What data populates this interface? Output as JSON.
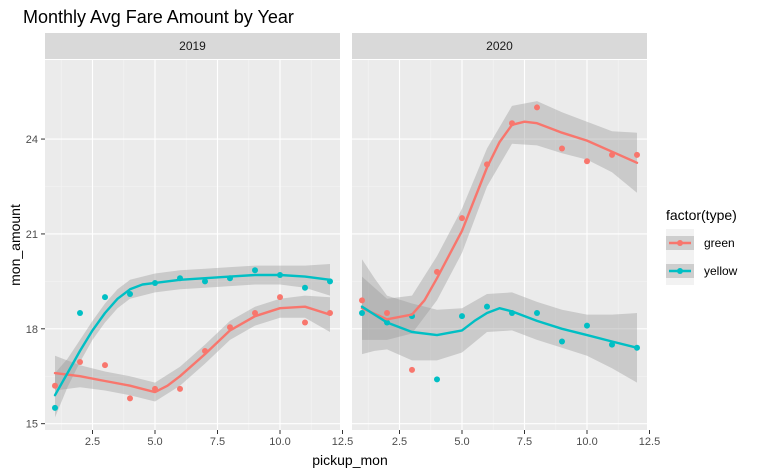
{
  "chart_data": {
    "type": "scatter",
    "title": "Monthly Avg Fare Amount by Year",
    "xlabel": "pickup_mon",
    "ylabel": "mon_amount",
    "xlim": [
      0.6,
      12.4
    ],
    "ylim": [
      14.8,
      26.5
    ],
    "x_ticks": [
      2.5,
      5.0,
      7.5,
      10.0,
      12.5
    ],
    "x_tick_labels": [
      "2.5",
      "5.0",
      "7.5",
      "10.0",
      "12.5"
    ],
    "y_ticks": [
      15,
      18,
      21,
      24
    ],
    "y_tick_labels": [
      "15",
      "18",
      "21",
      "24"
    ],
    "grid": true,
    "legend": {
      "title": "factor(type)",
      "placement": "right"
    },
    "colors": {
      "green": "#F8766D",
      "yellow": "#00BFC4"
    },
    "panels": [
      {
        "label": "2019",
        "series": [
          {
            "name": "green",
            "points": [
              [
                1,
                16.2
              ],
              [
                2,
                16.95
              ],
              [
                3,
                16.85
              ],
              [
                4,
                15.8
              ],
              [
                5,
                16.1
              ],
              [
                6,
                16.1
              ],
              [
                7,
                17.3
              ],
              [
                8,
                18.05
              ],
              [
                9,
                18.5
              ],
              [
                10,
                19.0
              ],
              [
                11,
                18.2
              ],
              [
                12,
                18.5
              ]
            ],
            "smooth": [
              [
                1,
                16.6
              ],
              [
                2,
                16.5
              ],
              [
                3,
                16.35
              ],
              [
                4,
                16.2
              ],
              [
                4.5,
                16.1
              ],
              [
                5,
                16.0
              ],
              [
                5.5,
                16.2
              ],
              [
                6,
                16.5
              ],
              [
                7,
                17.2
              ],
              [
                8,
                17.95
              ],
              [
                9,
                18.4
              ],
              [
                10,
                18.65
              ],
              [
                11,
                18.7
              ],
              [
                12,
                18.45
              ]
            ],
            "band": [
              [
                1,
                16.05,
                17.15
              ],
              [
                2,
                16.15,
                16.85
              ],
              [
                3,
                16.05,
                16.65
              ],
              [
                4,
                15.9,
                16.5
              ],
              [
                5,
                15.7,
                16.3
              ],
              [
                6,
                16.2,
                16.8
              ],
              [
                7,
                16.9,
                17.5
              ],
              [
                8,
                17.65,
                18.25
              ],
              [
                9,
                18.1,
                18.7
              ],
              [
                10,
                18.35,
                18.95
              ],
              [
                11,
                18.35,
                19.05
              ],
              [
                12,
                17.9,
                19.0
              ]
            ]
          },
          {
            "name": "yellow",
            "points": [
              [
                1,
                15.5
              ],
              [
                2,
                18.5
              ],
              [
                3,
                19.0
              ],
              [
                4,
                19.1
              ],
              [
                5,
                19.45
              ],
              [
                6,
                19.6
              ],
              [
                7,
                19.5
              ],
              [
                8,
                19.6
              ],
              [
                9,
                19.85
              ],
              [
                10,
                19.7
              ],
              [
                11,
                19.3
              ],
              [
                12,
                19.5
              ]
            ],
            "smooth": [
              [
                1,
                15.9
              ],
              [
                1.5,
                16.6
              ],
              [
                2,
                17.3
              ],
              [
                2.5,
                17.95
              ],
              [
                3,
                18.5
              ],
              [
                3.5,
                18.95
              ],
              [
                4,
                19.25
              ],
              [
                4.5,
                19.4
              ],
              [
                5,
                19.45
              ],
              [
                6,
                19.55
              ],
              [
                7,
                19.6
              ],
              [
                8,
                19.65
              ],
              [
                9,
                19.7
              ],
              [
                10,
                19.7
              ],
              [
                11,
                19.65
              ],
              [
                12,
                19.55
              ]
            ],
            "band": [
              [
                1,
                15.2,
                16.6
              ],
              [
                1.5,
                16.15,
                17.05
              ],
              [
                2,
                16.95,
                17.65
              ],
              [
                2.5,
                17.65,
                18.25
              ],
              [
                3,
                18.2,
                18.8
              ],
              [
                3.5,
                18.65,
                19.25
              ],
              [
                4,
                18.95,
                19.55
              ],
              [
                5,
                19.15,
                19.75
              ],
              [
                6,
                19.25,
                19.85
              ],
              [
                7,
                19.3,
                19.9
              ],
              [
                8,
                19.35,
                19.95
              ],
              [
                9,
                19.4,
                20.0
              ],
              [
                10,
                19.4,
                20.0
              ],
              [
                11,
                19.3,
                20.0
              ],
              [
                12,
                19.05,
                20.05
              ]
            ]
          }
        ]
      },
      {
        "label": "2020",
        "series": [
          {
            "name": "green",
            "points": [
              [
                1,
                18.9
              ],
              [
                2,
                18.5
              ],
              [
                3,
                16.7
              ],
              [
                4,
                19.8
              ],
              [
                5,
                21.5
              ],
              [
                6,
                23.2
              ],
              [
                7,
                24.5
              ],
              [
                8,
                25.0
              ],
              [
                9,
                23.7
              ],
              [
                10,
                23.3
              ],
              [
                11,
                23.5
              ],
              [
                12,
                23.5
              ]
            ],
            "smooth": [
              [
                1,
                18.65
              ],
              [
                2,
                18.3
              ],
              [
                3,
                18.45
              ],
              [
                3.5,
                18.9
              ],
              [
                4,
                19.6
              ],
              [
                5,
                21.1
              ],
              [
                6,
                23.1
              ],
              [
                6.5,
                23.9
              ],
              [
                7,
                24.45
              ],
              [
                7.5,
                24.55
              ],
              [
                8,
                24.5
              ],
              [
                9,
                24.2
              ],
              [
                10,
                23.95
              ],
              [
                11,
                23.6
              ],
              [
                12,
                23.25
              ]
            ],
            "band": [
              [
                1,
                17.65,
                19.65
              ],
              [
                2,
                17.65,
                18.95
              ],
              [
                3,
                17.85,
                19.05
              ],
              [
                4,
                18.9,
                20.3
              ],
              [
                5,
                20.4,
                21.8
              ],
              [
                6,
                22.5,
                23.7
              ],
              [
                7,
                23.85,
                25.05
              ],
              [
                8,
                23.8,
                25.2
              ],
              [
                9,
                23.55,
                24.85
              ],
              [
                10,
                23.35,
                24.55
              ],
              [
                11,
                22.95,
                24.25
              ],
              [
                12,
                22.3,
                24.2
              ]
            ]
          },
          {
            "name": "yellow",
            "points": [
              [
                1,
                18.5
              ],
              [
                2,
                18.2
              ],
              [
                3,
                18.4
              ],
              [
                4,
                16.4
              ],
              [
                5,
                18.4
              ],
              [
                6,
                18.7
              ],
              [
                7,
                18.5
              ],
              [
                8,
                18.5
              ],
              [
                9,
                17.6
              ],
              [
                10,
                18.1
              ],
              [
                11,
                17.5
              ],
              [
                12,
                17.4
              ]
            ],
            "smooth": [
              [
                1,
                18.7
              ],
              [
                1.5,
                18.45
              ],
              [
                2,
                18.2
              ],
              [
                3,
                17.9
              ],
              [
                4,
                17.8
              ],
              [
                5,
                17.95
              ],
              [
                5.5,
                18.25
              ],
              [
                6,
                18.5
              ],
              [
                6.5,
                18.65
              ],
              [
                7,
                18.55
              ],
              [
                8,
                18.25
              ],
              [
                9,
                18.0
              ],
              [
                10,
                17.8
              ],
              [
                11,
                17.6
              ],
              [
                12,
                17.4
              ]
            ],
            "band": [
              [
                1,
                17.2,
                20.2
              ],
              [
                1.5,
                17.3,
                19.6
              ],
              [
                2,
                17.35,
                19.05
              ],
              [
                3,
                17.0,
                18.8
              ],
              [
                4,
                17.0,
                18.6
              ],
              [
                5,
                17.25,
                18.65
              ],
              [
                6,
                17.9,
                19.1
              ],
              [
                7,
                17.95,
                19.15
              ],
              [
                8,
                17.65,
                18.85
              ],
              [
                9,
                17.4,
                18.6
              ],
              [
                10,
                17.15,
                18.45
              ],
              [
                11,
                16.75,
                18.45
              ],
              [
                12,
                16.3,
                18.5
              ]
            ]
          }
        ]
      }
    ]
  }
}
